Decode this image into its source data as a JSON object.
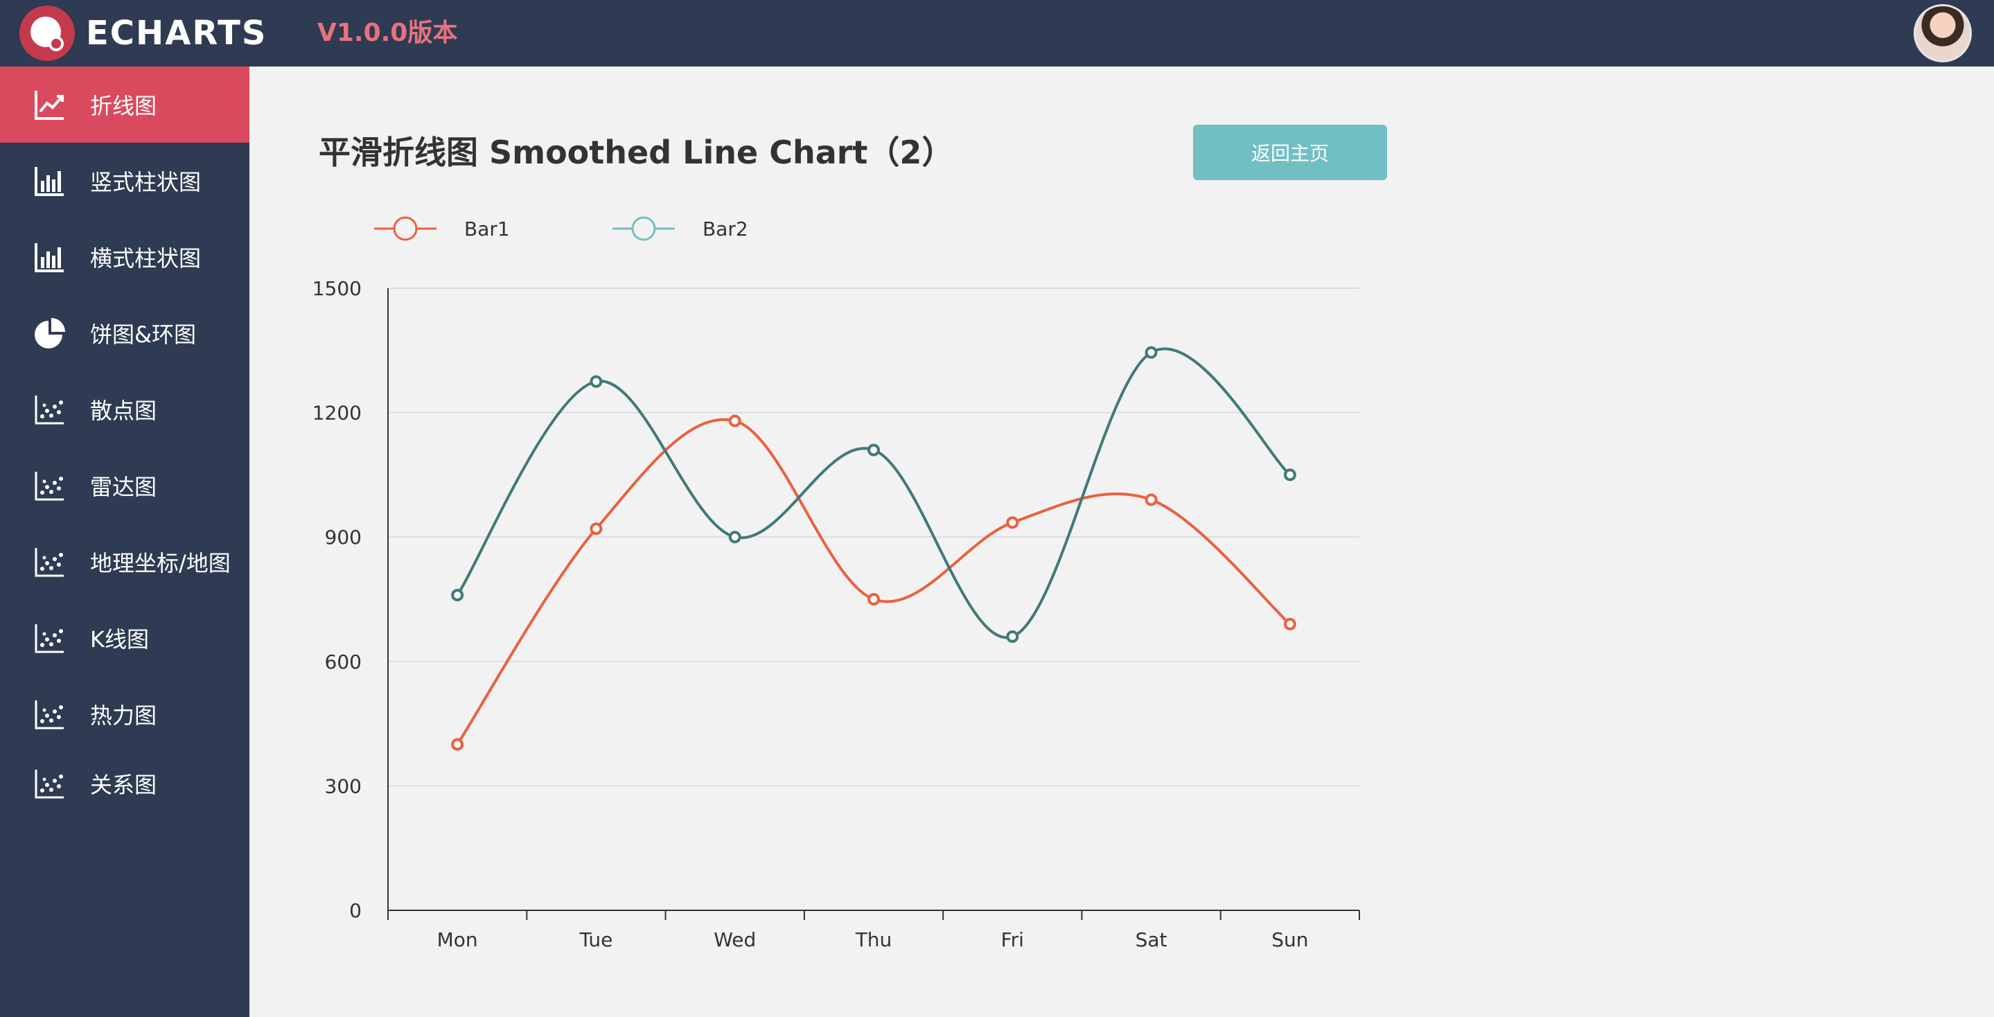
{
  "header": {
    "logo_text": "ECHARTS",
    "version": "V1.0.0版本",
    "avatar_icon": "user-avatar"
  },
  "sidebar": {
    "items": [
      {
        "label": "折线图",
        "icon": "line-chart-icon",
        "active": true
      },
      {
        "label": "竖式柱状图",
        "icon": "bar-chart-icon",
        "active": false
      },
      {
        "label": "横式柱状图",
        "icon": "bar-chart-icon",
        "active": false
      },
      {
        "label": "饼图&环图",
        "icon": "pie-chart-icon",
        "active": false
      },
      {
        "label": "散点图",
        "icon": "scatter-chart-icon",
        "active": false
      },
      {
        "label": "雷达图",
        "icon": "scatter-chart-icon",
        "active": false
      },
      {
        "label": "地理坐标/地图",
        "icon": "scatter-chart-icon",
        "active": false
      },
      {
        "label": "K线图",
        "icon": "scatter-chart-icon",
        "active": false
      },
      {
        "label": "热力图",
        "icon": "scatter-chart-icon",
        "active": false
      },
      {
        "label": "关系图",
        "icon": "scatter-chart-icon",
        "active": false
      }
    ]
  },
  "main": {
    "title": "平滑折线图 Smoothed Line Chart（2）",
    "back_button_label": "返回主页"
  },
  "colors": {
    "header_bg": "#2e3b52",
    "active_item": "#d94a5e",
    "bar1": "#e9613f",
    "bar2": "#3f7a78",
    "bar2_legend": "#72bfc3",
    "button": "#72bfc3"
  },
  "chart_data": {
    "type": "line",
    "smooth": true,
    "categories": [
      "Mon",
      "Tue",
      "Wed",
      "Thu",
      "Fri",
      "Sat",
      "Sun"
    ],
    "series": [
      {
        "name": "Bar1",
        "values": [
          400,
          920,
          1180,
          750,
          935,
          990,
          690
        ]
      },
      {
        "name": "Bar2",
        "values": [
          760,
          1275,
          900,
          1110,
          660,
          1345,
          1050
        ]
      }
    ],
    "yticks": [
      0,
      300,
      600,
      900,
      1200,
      1500
    ],
    "ylim": [
      0,
      1500
    ],
    "grid": "horizontal",
    "legend_position": "top-left"
  }
}
